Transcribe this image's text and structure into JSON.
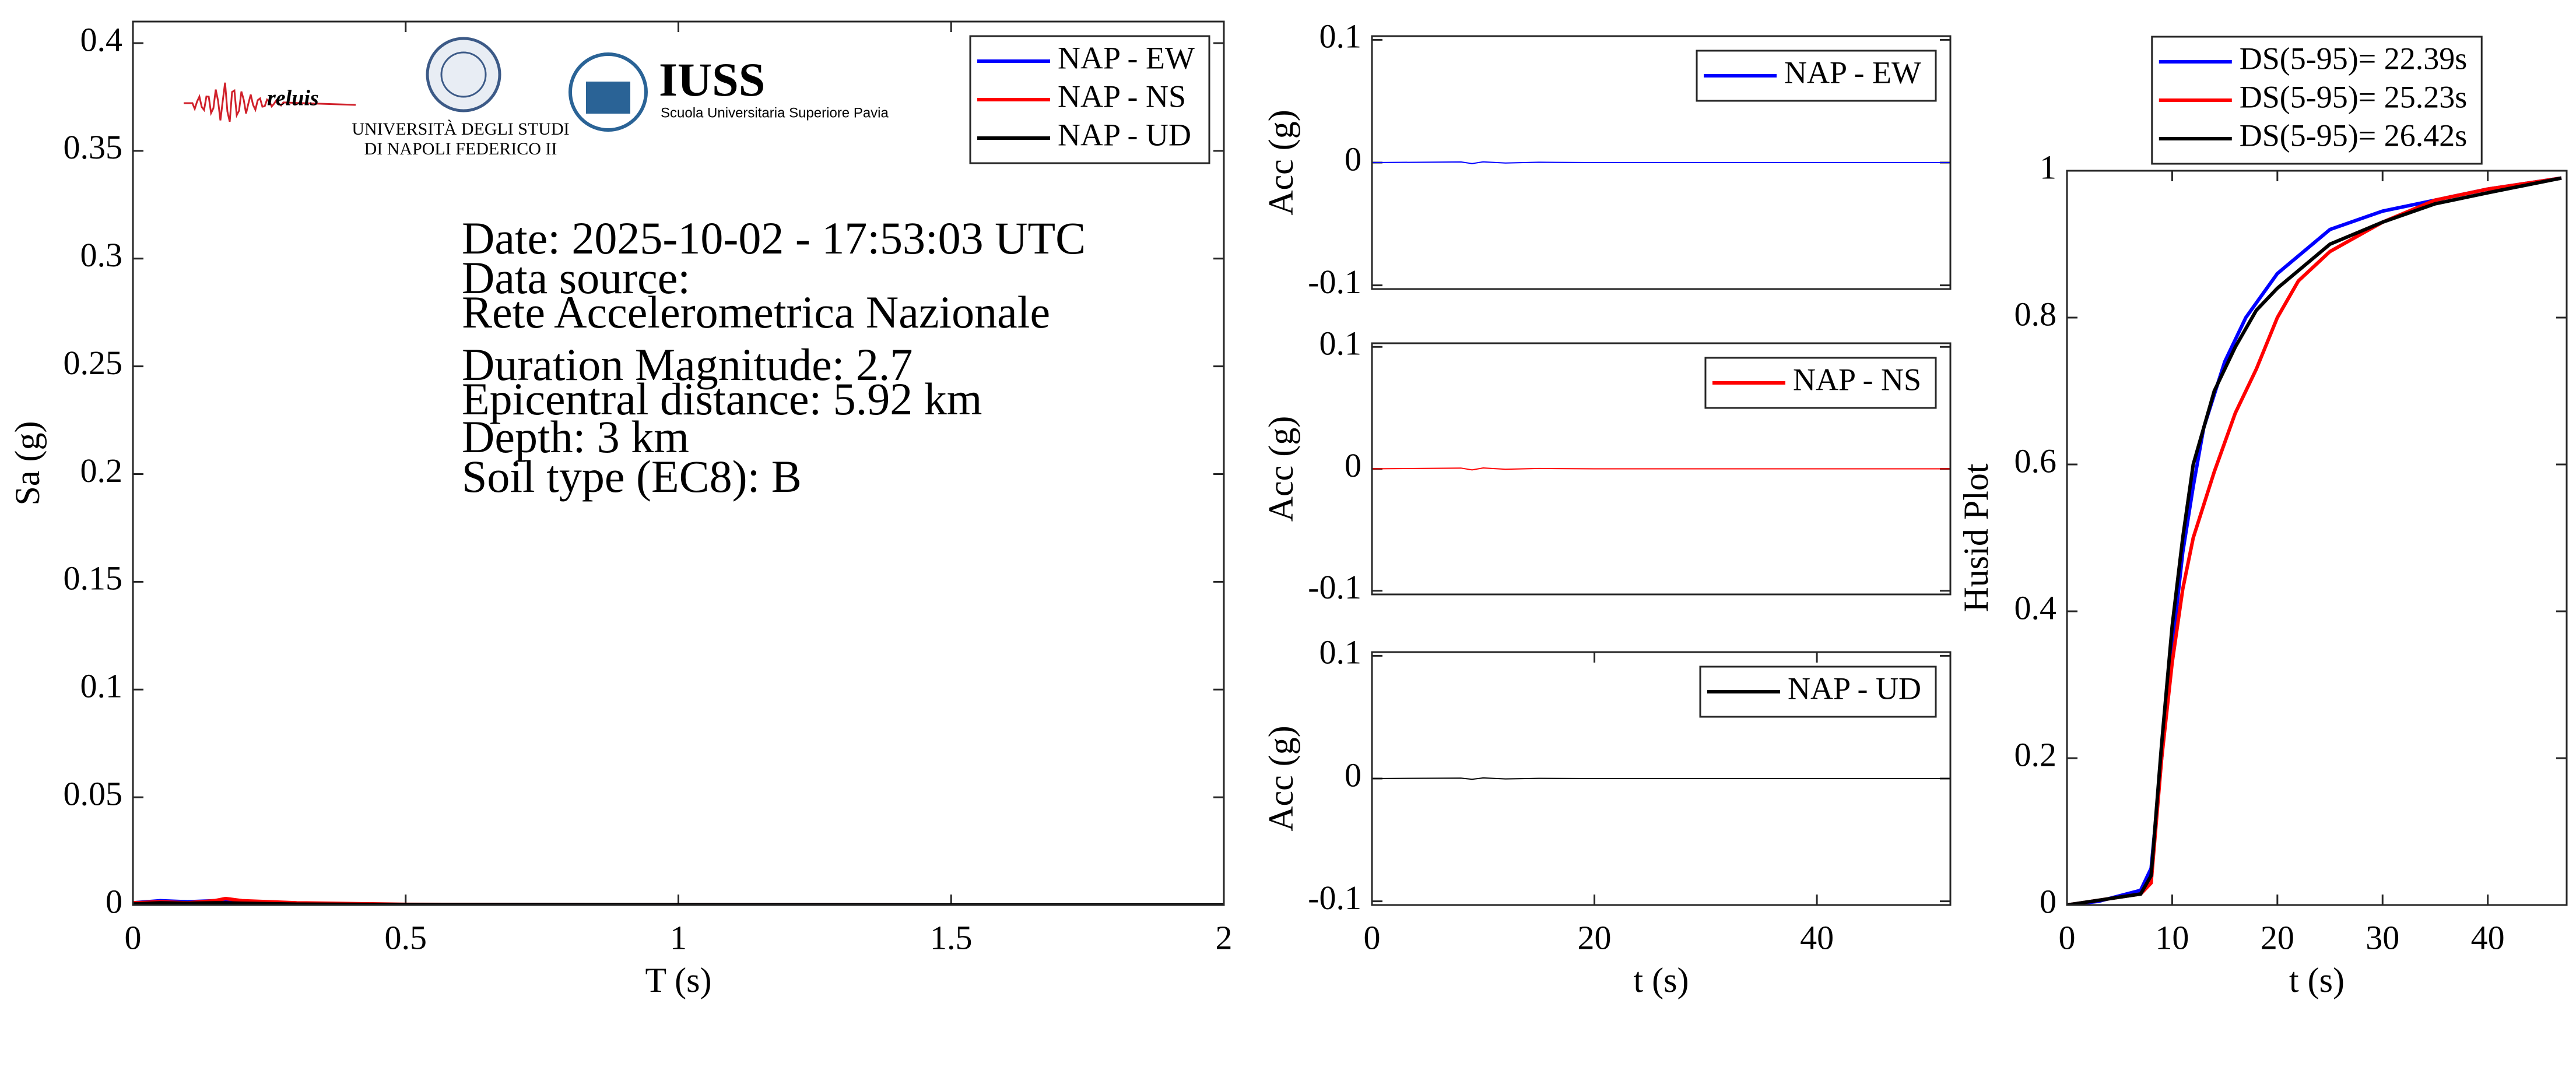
{
  "chart_data": [
    {
      "type": "line",
      "xlabel": "T (s)",
      "ylabel": "Sa (g)",
      "xlim": [
        0,
        2
      ],
      "ylim": [
        0,
        0.41
      ],
      "xticks": [
        0,
        0.5,
        1,
        1.5,
        2
      ],
      "yticks": [
        0,
        0.05,
        0.1,
        0.15,
        0.2,
        0.25,
        0.3,
        0.35,
        0.4
      ],
      "x": [
        0,
        0.05,
        0.1,
        0.15,
        0.17,
        0.2,
        0.3,
        0.5,
        1,
        1.5,
        2
      ],
      "series": [
        {
          "name": "NAP - EW",
          "color": "#0000ff",
          "values": [
            0.001,
            0.002,
            0.0015,
            0.002,
            0.002,
            0.001,
            0.0005,
            0.0002,
            0.0001,
            0,
            0
          ]
        },
        {
          "name": "NAP - NS",
          "color": "#ff0000",
          "values": [
            0.001,
            0.0015,
            0.001,
            0.002,
            0.003,
            0.002,
            0.001,
            0.0003,
            0.0001,
            0,
            0
          ]
        },
        {
          "name": "NAP - UD",
          "color": "#000000",
          "values": [
            0.0005,
            0.001,
            0.0008,
            0.001,
            0.001,
            0.0008,
            0.0004,
            0.0002,
            0.0001,
            0,
            0
          ]
        }
      ],
      "legend": "upper right",
      "annotations": [
        "Date: 2025-10-02 - 17:53:03 UTC",
        "Data source:",
        "Rete Accelerometrica Nazionale",
        "Duration Magnitude: 2.7",
        "Epicentral distance: 5.92 km",
        "Depth: 3 km",
        "Soil type (EC8): B"
      ],
      "logos": [
        "reluis",
        "UNIVERSITÀ DEGLI STUDI",
        "DI NAPOLI FEDERICO II",
        "IUSS",
        "Scuola Universitaria Superiore Pavia"
      ]
    },
    {
      "type": "line",
      "ylabel": "Acc (g)",
      "xlim": [
        0,
        52
      ],
      "ylim": [
        -0.103,
        0.103
      ],
      "yticks": [
        -0.1,
        0,
        0.1
      ],
      "x": [
        0,
        8,
        9,
        10,
        12,
        15,
        20,
        30,
        52
      ],
      "series": [
        {
          "name": "NAP - EW",
          "color": "#0000ff",
          "values": [
            0,
            0.0005,
            -0.0008,
            0.0006,
            -0.0004,
            0.0003,
            0,
            0,
            0
          ]
        }
      ],
      "legend": "upper right"
    },
    {
      "type": "line",
      "ylabel": "Acc (g)",
      "xlim": [
        0,
        52
      ],
      "ylim": [
        -0.103,
        0.103
      ],
      "yticks": [
        -0.1,
        0,
        0.1
      ],
      "x": [
        0,
        8,
        9,
        10,
        12,
        15,
        20,
        30,
        52
      ],
      "series": [
        {
          "name": "NAP - NS",
          "color": "#ff0000",
          "values": [
            0,
            0.0006,
            -0.0009,
            0.0007,
            -0.0004,
            0.0003,
            0,
            0,
            0
          ]
        }
      ],
      "legend": "upper right"
    },
    {
      "type": "line",
      "xlabel": "t (s)",
      "ylabel": "Acc (g)",
      "xlim": [
        0,
        52
      ],
      "ylim": [
        -0.103,
        0.103
      ],
      "xticks": [
        0,
        20,
        40
      ],
      "yticks": [
        -0.1,
        0,
        0.1
      ],
      "x": [
        0,
        8,
        9,
        10,
        12,
        15,
        20,
        30,
        52
      ],
      "series": [
        {
          "name": "NAP - UD",
          "color": "#000000",
          "values": [
            0,
            0.0004,
            -0.0006,
            0.0005,
            -0.0003,
            0.0002,
            0,
            0,
            0
          ]
        }
      ],
      "legend": "upper right"
    },
    {
      "type": "line",
      "xlabel": "t (s)",
      "ylabel": "Husid Plot",
      "xlim": [
        0,
        47.5
      ],
      "ylim": [
        0,
        1
      ],
      "xticks": [
        0,
        10,
        20,
        30,
        40
      ],
      "yticks": [
        0,
        0.2,
        0.4,
        0.6,
        0.8,
        1
      ],
      "series": [
        {
          "name": "DS(5-95)= 22.39s",
          "color": "#0000ff",
          "x": [
            0,
            3,
            7,
            8,
            9,
            10,
            11,
            12,
            13,
            15,
            17,
            20,
            25,
            30,
            35,
            40,
            47
          ],
          "values": [
            0,
            0.005,
            0.02,
            0.05,
            0.2,
            0.35,
            0.48,
            0.57,
            0.65,
            0.74,
            0.8,
            0.86,
            0.92,
            0.945,
            0.96,
            0.975,
            0.99
          ]
        },
        {
          "name": "DS(5-95)= 25.23s",
          "color": "#ff0000",
          "x": [
            0,
            7,
            8,
            9,
            10,
            11,
            12,
            14,
            16,
            18,
            20,
            22,
            25,
            30,
            35,
            40,
            47
          ],
          "values": [
            0,
            0.015,
            0.03,
            0.2,
            0.33,
            0.43,
            0.5,
            0.59,
            0.67,
            0.73,
            0.8,
            0.85,
            0.89,
            0.93,
            0.96,
            0.975,
            0.99
          ]
        },
        {
          "name": "DS(5-95)= 26.42s",
          "color": "#000000",
          "x": [
            0,
            7,
            8,
            9,
            10,
            11,
            12,
            14,
            16,
            18,
            20,
            25,
            30,
            35,
            40,
            47
          ],
          "values": [
            0,
            0.015,
            0.04,
            0.22,
            0.38,
            0.5,
            0.6,
            0.7,
            0.76,
            0.81,
            0.84,
            0.9,
            0.93,
            0.955,
            0.97,
            0.99
          ]
        }
      ],
      "legend": "top outside"
    }
  ]
}
